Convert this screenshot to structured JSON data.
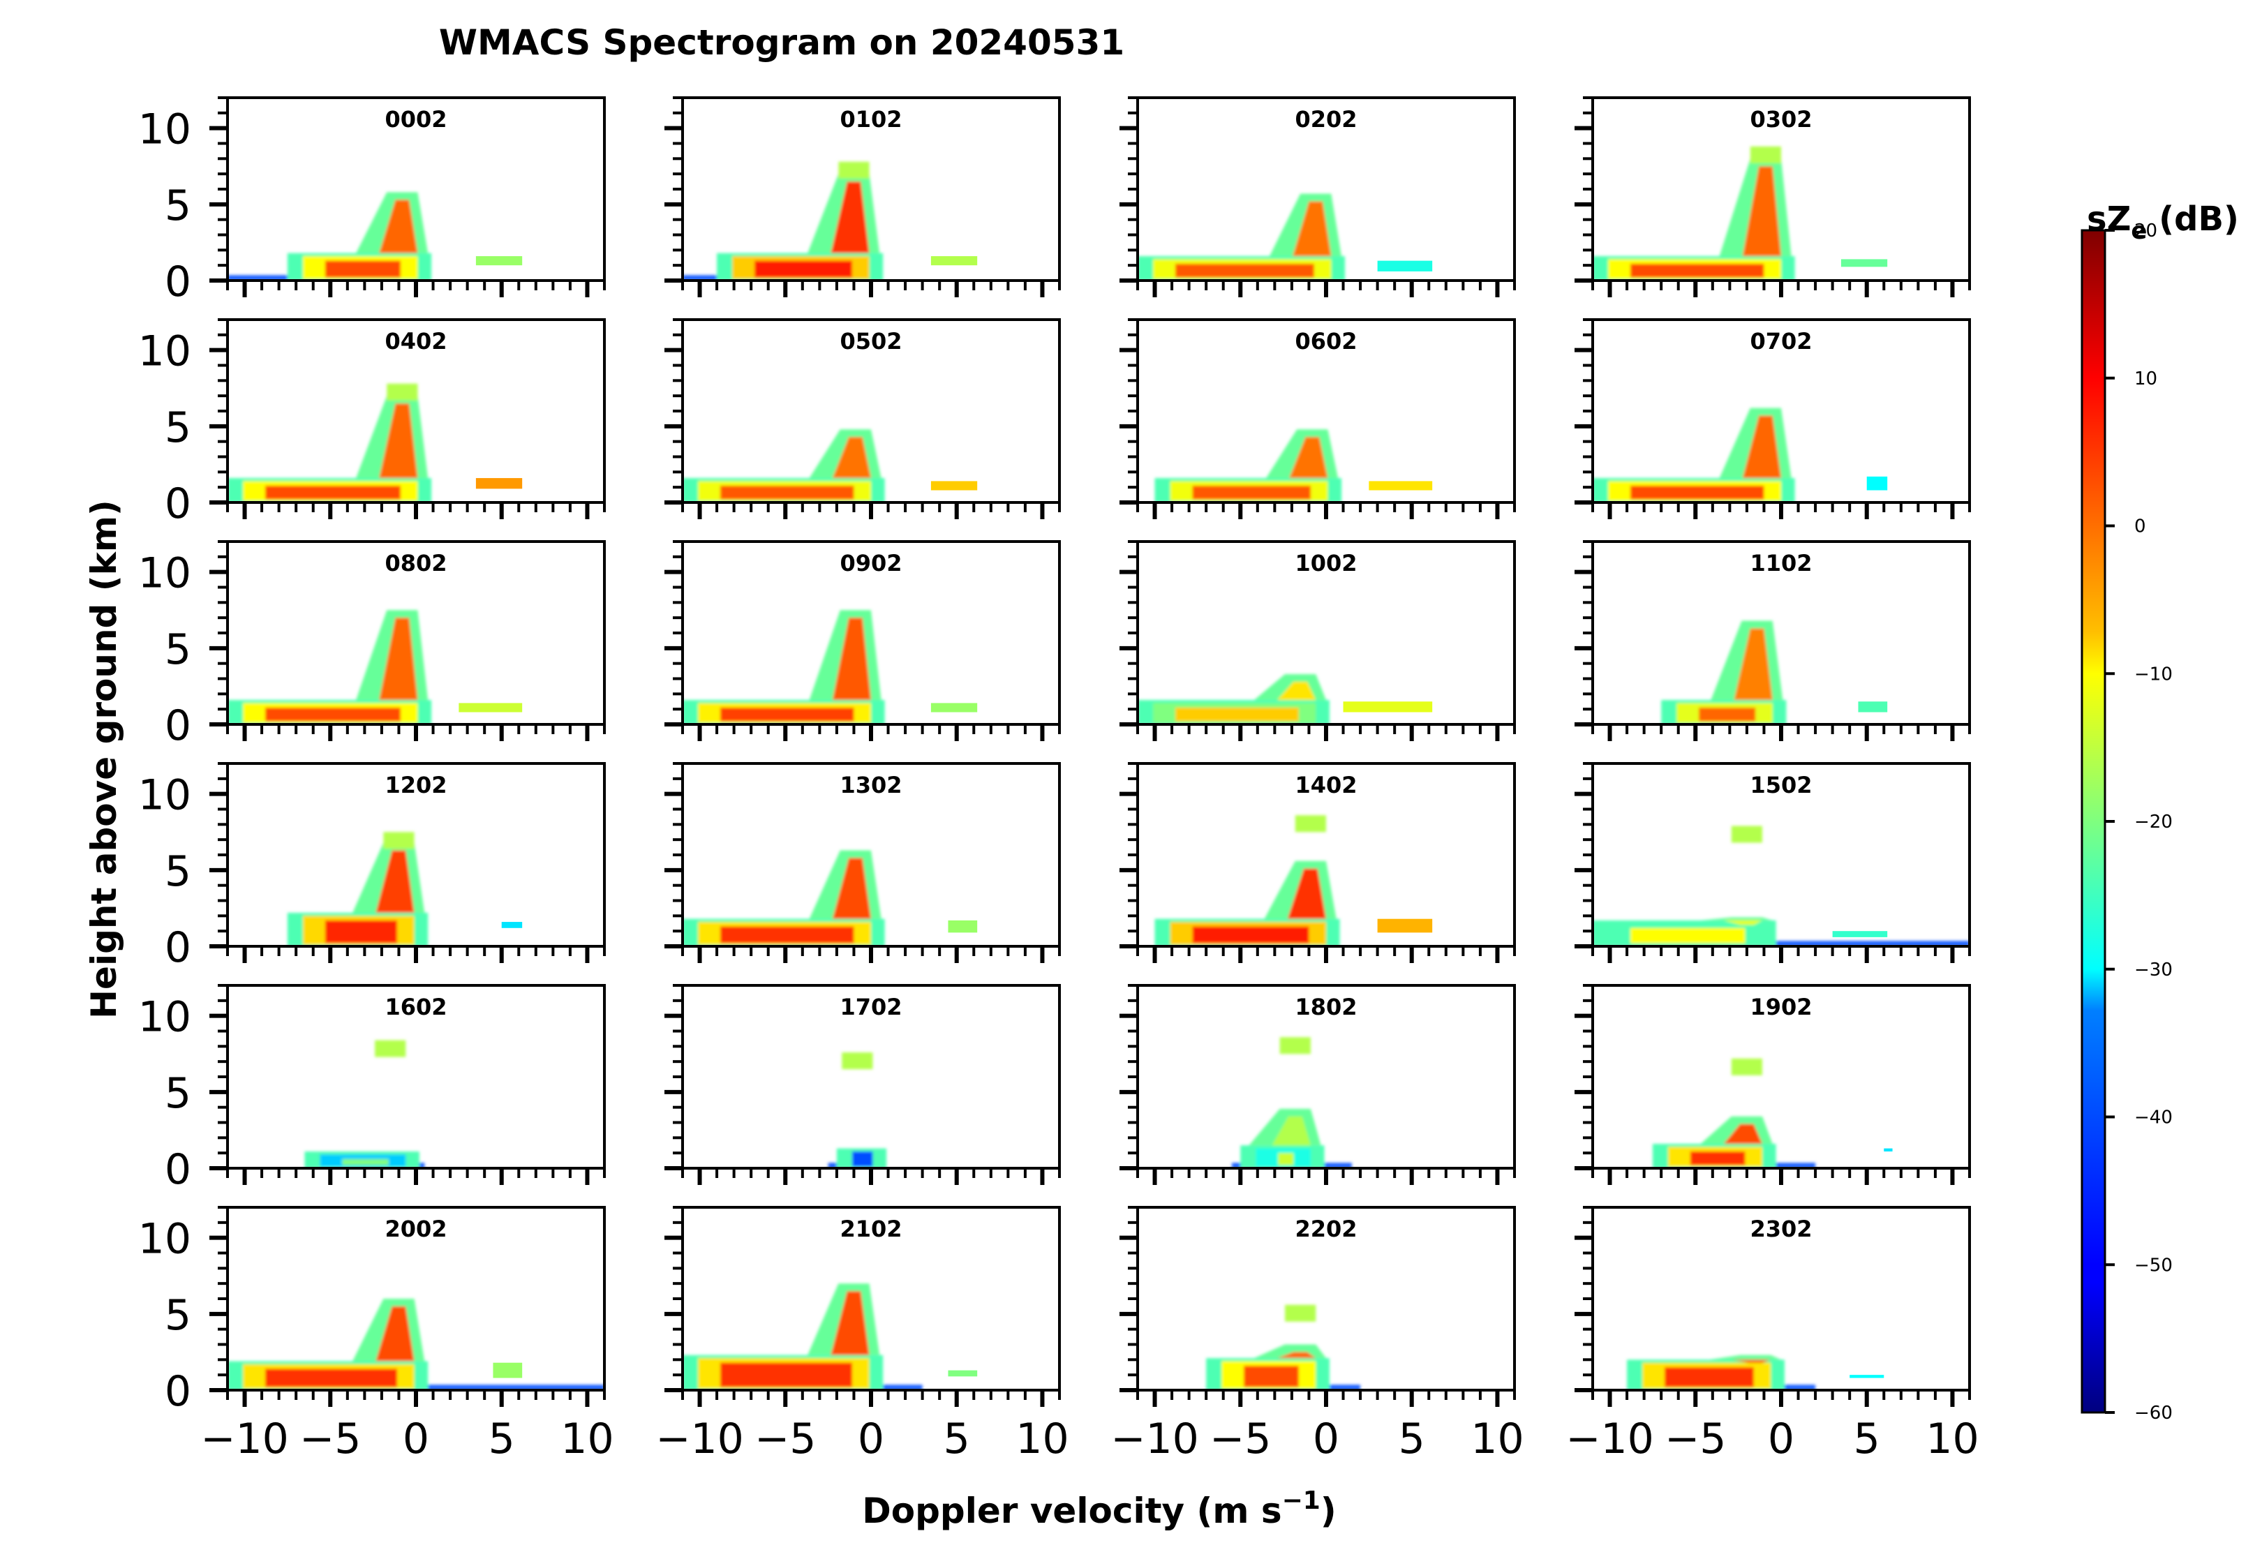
{
  "chart_data": {
    "type": "heatmap",
    "title": "WMACS Spectrogram on 20240531",
    "xlabel": "Doppler velocity (m s",
    "xlabel_sup": "−1",
    "xlabel_close": ")",
    "ylabel": "Height above ground (km)",
    "xlim": [
      -11,
      11
    ],
    "ylim": [
      0,
      12
    ],
    "x_ticks": [
      -10,
      -5,
      0,
      5,
      10
    ],
    "x_tick_labels": [
      "−10",
      "−5",
      "0",
      "5",
      "10"
    ],
    "y_ticks": [
      0,
      5,
      10
    ],
    "y_tick_labels": [
      "0",
      "5",
      "10"
    ],
    "colorbar": {
      "label": "sZ",
      "label_sub": "e",
      "label_unit": " (dB)",
      "min": -60,
      "max": 20,
      "ticks": [
        -60,
        -50,
        -40,
        -30,
        -20,
        -10,
        0,
        10,
        20
      ],
      "tick_labels": [
        "−60",
        "−50",
        "−40",
        "−30",
        "−20",
        "−10",
        "0",
        "10",
        "20"
      ],
      "colormap": "jet"
    },
    "panels": [
      {
        "label": "0002",
        "col": 0,
        "row": 0,
        "core_v": -0.8,
        "core_top": 5.8,
        "max_h": 6.3,
        "layer_top": 1.8,
        "layer_left": -7.5,
        "layer_db": 4,
        "side_band": [
          3.5,
          6.2,
          1.0,
          1.6,
          -18
        ],
        "blue_foot": [
          -11.0,
          -3.0
        ]
      },
      {
        "label": "0102",
        "col": 1,
        "row": 0,
        "core_v": -1.0,
        "core_top": 7.0,
        "max_h": 7.8,
        "layer_top": 1.8,
        "layer_left": -9.0,
        "layer_db": 8,
        "side_band": [
          3.5,
          6.2,
          1.0,
          1.6,
          -16
        ],
        "blue_foot": [
          -11.0,
          -3.0
        ]
      },
      {
        "label": "0202",
        "col": 2,
        "row": 0,
        "core_v": -0.6,
        "core_top": 5.7,
        "max_h": 6.2,
        "layer_top": 1.6,
        "layer_left": -11.0,
        "layer_db": 3,
        "side_band": [
          3.0,
          6.2,
          0.6,
          1.3,
          -28
        ],
        "blue_foot": [
          -11.0,
          -4.0
        ]
      },
      {
        "label": "0302",
        "col": 3,
        "row": 0,
        "core_v": -0.9,
        "core_top": 8.0,
        "max_h": 8.8,
        "layer_top": 1.6,
        "layer_left": -11.0,
        "layer_db": 4,
        "side_band": [
          3.5,
          6.2,
          0.9,
          1.4,
          -22
        ],
        "blue_foot": [
          -11.0,
          -3.0
        ]
      },
      {
        "label": "0402",
        "col": 0,
        "row": 1,
        "core_v": -0.8,
        "core_top": 7.0,
        "max_h": 7.8,
        "layer_top": 1.6,
        "layer_left": -11.0,
        "layer_db": 4,
        "side_band": [
          3.5,
          6.2,
          0.9,
          1.6,
          -2
        ],
        "blue_foot": [
          -11.0,
          -4.0
        ]
      },
      {
        "label": "0502",
        "col": 1,
        "row": 1,
        "core_v": -0.9,
        "core_top": 4.8,
        "max_h": 5.3,
        "layer_top": 1.6,
        "layer_left": -11.0,
        "layer_db": 3,
        "side_band": [
          3.5,
          6.2,
          0.8,
          1.4,
          -6
        ],
        "blue_foot": [
          -11.0,
          -4.0
        ]
      },
      {
        "label": "0602",
        "col": 2,
        "row": 1,
        "core_v": -0.8,
        "core_top": 4.8,
        "max_h": 5.3,
        "layer_top": 1.6,
        "layer_left": -10.0,
        "layer_db": 3,
        "side_band": [
          2.5,
          6.2,
          0.8,
          1.4,
          -8
        ],
        "blue_foot": [
          -10.0,
          -4.0
        ]
      },
      {
        "label": "0702",
        "col": 3,
        "row": 1,
        "core_v": -0.9,
        "core_top": 6.2,
        "max_h": 6.7,
        "layer_top": 1.6,
        "layer_left": -11.0,
        "layer_db": 4,
        "side_band": [
          5.0,
          6.2,
          0.8,
          1.7,
          -30
        ],
        "blue_foot": [
          -11.0,
          -4.0
        ]
      },
      {
        "label": "0802",
        "col": 0,
        "row": 2,
        "core_v": -0.8,
        "core_top": 7.5,
        "max_h": 8.0,
        "layer_top": 1.6,
        "layer_left": -11.0,
        "layer_db": 4,
        "side_band": [
          2.5,
          6.2,
          0.8,
          1.4,
          -14
        ],
        "blue_foot": [
          -11.0,
          -4.0
        ]
      },
      {
        "label": "0902",
        "col": 1,
        "row": 2,
        "core_v": -0.9,
        "core_top": 7.5,
        "max_h": 8.0,
        "layer_top": 1.6,
        "layer_left": -11.0,
        "layer_db": 5,
        "side_band": [
          3.5,
          6.2,
          0.8,
          1.4,
          -18
        ],
        "blue_foot": [
          -11.0,
          -4.0
        ]
      },
      {
        "label": "1002",
        "col": 2,
        "row": 2,
        "core_v": -1.5,
        "core_top": 3.3,
        "max_h": 3.8,
        "layer_top": 1.6,
        "layer_left": -11.0,
        "layer_db": -6,
        "side_band": [
          1.0,
          6.2,
          0.8,
          1.5,
          -12
        ],
        "blue_foot": [
          -11.0,
          -4.0
        ]
      },
      {
        "label": "1102",
        "col": 3,
        "row": 2,
        "core_v": -1.4,
        "core_top": 6.8,
        "max_h": 7.3,
        "layer_top": 1.6,
        "layer_left": -7.0,
        "layer_db": 2,
        "side_band": [
          4.5,
          6.2,
          0.8,
          1.5,
          -24
        ],
        "blue_foot": [
          -6.0,
          -1.0
        ]
      },
      {
        "label": "1202",
        "col": 0,
        "row": 3,
        "core_v": -1.0,
        "core_top": 6.8,
        "max_h": 7.5,
        "layer_top": 2.2,
        "layer_left": -7.5,
        "layer_db": 7,
        "side_band": [
          5.0,
          6.2,
          1.2,
          1.6,
          -32
        ],
        "blue_foot": [
          -7.0,
          -3.0
        ]
      },
      {
        "label": "1302",
        "col": 1,
        "row": 3,
        "core_v": -0.9,
        "core_top": 6.3,
        "max_h": 6.8,
        "layer_top": 1.8,
        "layer_left": -11.0,
        "layer_db": 6,
        "side_band": [
          4.5,
          6.2,
          0.9,
          1.7,
          -18
        ],
        "blue_foot": [
          -11.0,
          -3.0
        ]
      },
      {
        "label": "1402",
        "col": 2,
        "row": 3,
        "core_v": -0.9,
        "core_top": 5.6,
        "max_h": 8.6,
        "layer_top": 1.8,
        "layer_left": -10.0,
        "layer_db": 8,
        "side_band": [
          3.0,
          6.2,
          0.9,
          1.8,
          -4
        ],
        "blue_foot": [
          -10.0,
          -3.0
        ]
      },
      {
        "label": "1502",
        "col": 3,
        "row": 3,
        "core_v": -2.0,
        "core_top": 1.9,
        "max_h": 7.9,
        "layer_top": 1.7,
        "layer_left": -11.0,
        "layer_db": -10,
        "side_band": [
          3.0,
          6.2,
          0.6,
          1.0,
          -26
        ],
        "blue_foot": [
          -11.0,
          11.0
        ]
      },
      {
        "label": "1602",
        "col": 0,
        "row": 4,
        "core_v": -1.5,
        "core_top": 1.0,
        "max_h": 8.4,
        "layer_top": 1.1,
        "layer_left": -6.5,
        "layer_db": -20,
        "side_band": null,
        "blue_foot": [
          -5.0,
          0.5
        ]
      },
      {
        "label": "1702",
        "col": 1,
        "row": 4,
        "core_v": -0.8,
        "core_top": 1.3,
        "max_h": 7.6,
        "layer_top": 1.3,
        "layer_left": -2.0,
        "layer_db": -30,
        "side_band": null,
        "blue_foot": [
          -2.5,
          0.5
        ]
      },
      {
        "label": "1802",
        "col": 2,
        "row": 4,
        "core_v": -1.8,
        "core_top": 3.9,
        "max_h": 8.6,
        "layer_top": 1.5,
        "layer_left": -5.0,
        "layer_db": -14,
        "side_band": null,
        "blue_foot": [
          -5.5,
          1.5
        ]
      },
      {
        "label": "1902",
        "col": 3,
        "row": 4,
        "core_v": -2.0,
        "core_top": 3.4,
        "max_h": 7.2,
        "layer_top": 1.6,
        "layer_left": -7.5,
        "layer_db": 6,
        "side_band": [
          6.0,
          6.5,
          1.1,
          1.3,
          -32
        ],
        "blue_foot": [
          -7.0,
          2.0
        ]
      },
      {
        "label": "2002",
        "col": 0,
        "row": 5,
        "core_v": -1.0,
        "core_top": 6.0,
        "max_h": 6.5,
        "layer_top": 1.9,
        "layer_left": -11.0,
        "layer_db": 6,
        "side_band": [
          4.5,
          6.2,
          0.8,
          1.8,
          -18
        ],
        "blue_foot": [
          -11.0,
          11.0
        ]
      },
      {
        "label": "2102",
        "col": 1,
        "row": 5,
        "core_v": -1.0,
        "core_top": 7.0,
        "max_h": 7.5,
        "layer_top": 2.3,
        "layer_left": -11.0,
        "layer_db": 6,
        "side_band": [
          4.5,
          6.2,
          0.9,
          1.3,
          -20
        ],
        "blue_foot": [
          -11.0,
          3.0
        ]
      },
      {
        "label": "2202",
        "col": 2,
        "row": 5,
        "core_v": -1.5,
        "core_top": 3.0,
        "max_h": 5.6,
        "layer_top": 2.1,
        "layer_left": -7.0,
        "layer_db": 4,
        "side_band": null,
        "blue_foot": [
          -7.0,
          2.0
        ]
      },
      {
        "label": "2302",
        "col": 3,
        "row": 5,
        "core_v": -1.5,
        "core_top": 2.3,
        "max_h": 2.5,
        "layer_top": 2.0,
        "layer_left": -9.0,
        "layer_db": 6,
        "side_band": [
          4.0,
          6.0,
          0.8,
          1.0,
          -30
        ],
        "blue_foot": [
          -9.0,
          2.0
        ]
      }
    ]
  }
}
